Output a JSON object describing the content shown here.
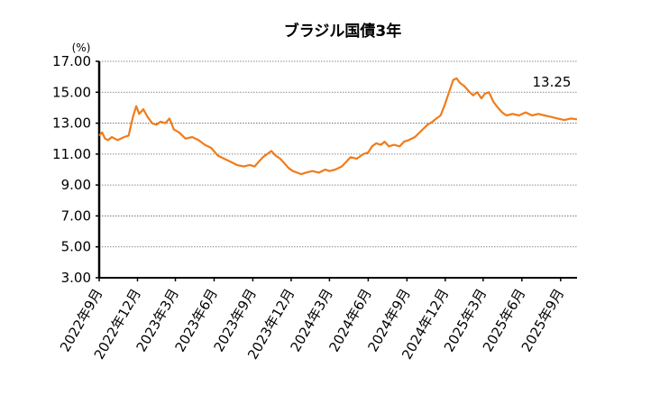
{
  "chart_data": {
    "type": "line",
    "title": "ブラジル国債3年",
    "unit_label": "(%)",
    "annotation": "13.25",
    "ylim": [
      3.0,
      17.0
    ],
    "yticks": [
      "17.00",
      "15.00",
      "13.00",
      "11.00",
      "9.00",
      "7.00",
      "5.00",
      "3.00"
    ],
    "grid": true,
    "legend": "none",
    "xlim": [
      "2022-09-01",
      "2025-10-10"
    ],
    "xticks": [
      {
        "label": "2022年9月",
        "date": "2022-09-01"
      },
      {
        "label": "2022年12月",
        "date": "2022-12-01"
      },
      {
        "label": "2023年3月",
        "date": "2023-03-01"
      },
      {
        "label": "2023年6月",
        "date": "2023-06-01"
      },
      {
        "label": "2023年9月",
        "date": "2023-09-01"
      },
      {
        "label": "2023年12月",
        "date": "2023-12-01"
      },
      {
        "label": "2024年3月",
        "date": "2024-03-01"
      },
      {
        "label": "2024年6月",
        "date": "2024-06-01"
      },
      {
        "label": "2024年9月",
        "date": "2024-09-01"
      },
      {
        "label": "2024年12月",
        "date": "2024-12-01"
      },
      {
        "label": "2025年3月",
        "date": "2025-03-01"
      },
      {
        "label": "2025年6月",
        "date": "2025-06-01"
      },
      {
        "label": "2025年9月",
        "date": "2025-09-01"
      }
    ],
    "series": [
      {
        "color": "#f07c1c",
        "points": [
          [
            "2022-09-01",
            12.2
          ],
          [
            "2022-09-08",
            12.4
          ],
          [
            "2022-09-15",
            12.0
          ],
          [
            "2022-09-22",
            11.9
          ],
          [
            "2022-10-01",
            12.1
          ],
          [
            "2022-10-15",
            11.9
          ],
          [
            "2022-10-30",
            12.1
          ],
          [
            "2022-11-10",
            12.2
          ],
          [
            "2022-11-20",
            13.4
          ],
          [
            "2022-11-28",
            14.1
          ],
          [
            "2022-12-05",
            13.6
          ],
          [
            "2022-12-15",
            13.9
          ],
          [
            "2022-12-25",
            13.4
          ],
          [
            "2023-01-05",
            13.0
          ],
          [
            "2023-01-15",
            12.9
          ],
          [
            "2023-01-25",
            13.1
          ],
          [
            "2023-02-05",
            13.0
          ],
          [
            "2023-02-15",
            13.3
          ],
          [
            "2023-02-25",
            12.6
          ],
          [
            "2023-03-10",
            12.4
          ],
          [
            "2023-03-25",
            12.0
          ],
          [
            "2023-04-10",
            12.1
          ],
          [
            "2023-04-25",
            11.9
          ],
          [
            "2023-05-10",
            11.6
          ],
          [
            "2023-05-25",
            11.4
          ],
          [
            "2023-06-10",
            10.9
          ],
          [
            "2023-06-25",
            10.7
          ],
          [
            "2023-07-10",
            10.5
          ],
          [
            "2023-07-25",
            10.3
          ],
          [
            "2023-08-10",
            10.2
          ],
          [
            "2023-08-25",
            10.3
          ],
          [
            "2023-09-05",
            10.2
          ],
          [
            "2023-09-15",
            10.5
          ],
          [
            "2023-09-25",
            10.8
          ],
          [
            "2023-10-05",
            11.0
          ],
          [
            "2023-10-15",
            11.2
          ],
          [
            "2023-10-25",
            10.9
          ],
          [
            "2023-11-05",
            10.7
          ],
          [
            "2023-11-15",
            10.4
          ],
          [
            "2023-11-25",
            10.1
          ],
          [
            "2023-12-05",
            9.9
          ],
          [
            "2023-12-15",
            9.8
          ],
          [
            "2023-12-25",
            9.7
          ],
          [
            "2024-01-05",
            9.8
          ],
          [
            "2024-01-20",
            9.9
          ],
          [
            "2024-02-05",
            9.8
          ],
          [
            "2024-02-20",
            10.0
          ],
          [
            "2024-03-01",
            9.9
          ],
          [
            "2024-03-15",
            10.0
          ],
          [
            "2024-03-30",
            10.2
          ],
          [
            "2024-04-10",
            10.5
          ],
          [
            "2024-04-20",
            10.8
          ],
          [
            "2024-05-05",
            10.7
          ],
          [
            "2024-05-20",
            11.0
          ],
          [
            "2024-06-01",
            11.1
          ],
          [
            "2024-06-10",
            11.5
          ],
          [
            "2024-06-20",
            11.7
          ],
          [
            "2024-07-01",
            11.6
          ],
          [
            "2024-07-10",
            11.8
          ],
          [
            "2024-07-20",
            11.5
          ],
          [
            "2024-08-01",
            11.6
          ],
          [
            "2024-08-15",
            11.5
          ],
          [
            "2024-08-25",
            11.8
          ],
          [
            "2024-09-05",
            11.9
          ],
          [
            "2024-09-20",
            12.1
          ],
          [
            "2024-10-05",
            12.5
          ],
          [
            "2024-10-20",
            12.9
          ],
          [
            "2024-11-01",
            13.1
          ],
          [
            "2024-11-10",
            13.3
          ],
          [
            "2024-11-20",
            13.5
          ],
          [
            "2024-11-30",
            14.2
          ],
          [
            "2024-12-10",
            15.0
          ],
          [
            "2024-12-20",
            15.8
          ],
          [
            "2024-12-28",
            15.9
          ],
          [
            "2025-01-05",
            15.6
          ],
          [
            "2025-01-15",
            15.4
          ],
          [
            "2025-01-25",
            15.1
          ],
          [
            "2025-02-05",
            14.8
          ],
          [
            "2025-02-15",
            15.0
          ],
          [
            "2025-02-25",
            14.6
          ],
          [
            "2025-03-05",
            14.9
          ],
          [
            "2025-03-15",
            15.0
          ],
          [
            "2025-03-25",
            14.4
          ],
          [
            "2025-04-05",
            14.0
          ],
          [
            "2025-04-15",
            13.7
          ],
          [
            "2025-04-25",
            13.5
          ],
          [
            "2025-05-10",
            13.6
          ],
          [
            "2025-05-25",
            13.5
          ],
          [
            "2025-06-10",
            13.7
          ],
          [
            "2025-06-25",
            13.5
          ],
          [
            "2025-07-10",
            13.6
          ],
          [
            "2025-07-25",
            13.5
          ],
          [
            "2025-08-10",
            13.4
          ],
          [
            "2025-08-25",
            13.3
          ],
          [
            "2025-09-10",
            13.2
          ],
          [
            "2025-09-25",
            13.3
          ],
          [
            "2025-10-10",
            13.25
          ]
        ]
      }
    ]
  }
}
